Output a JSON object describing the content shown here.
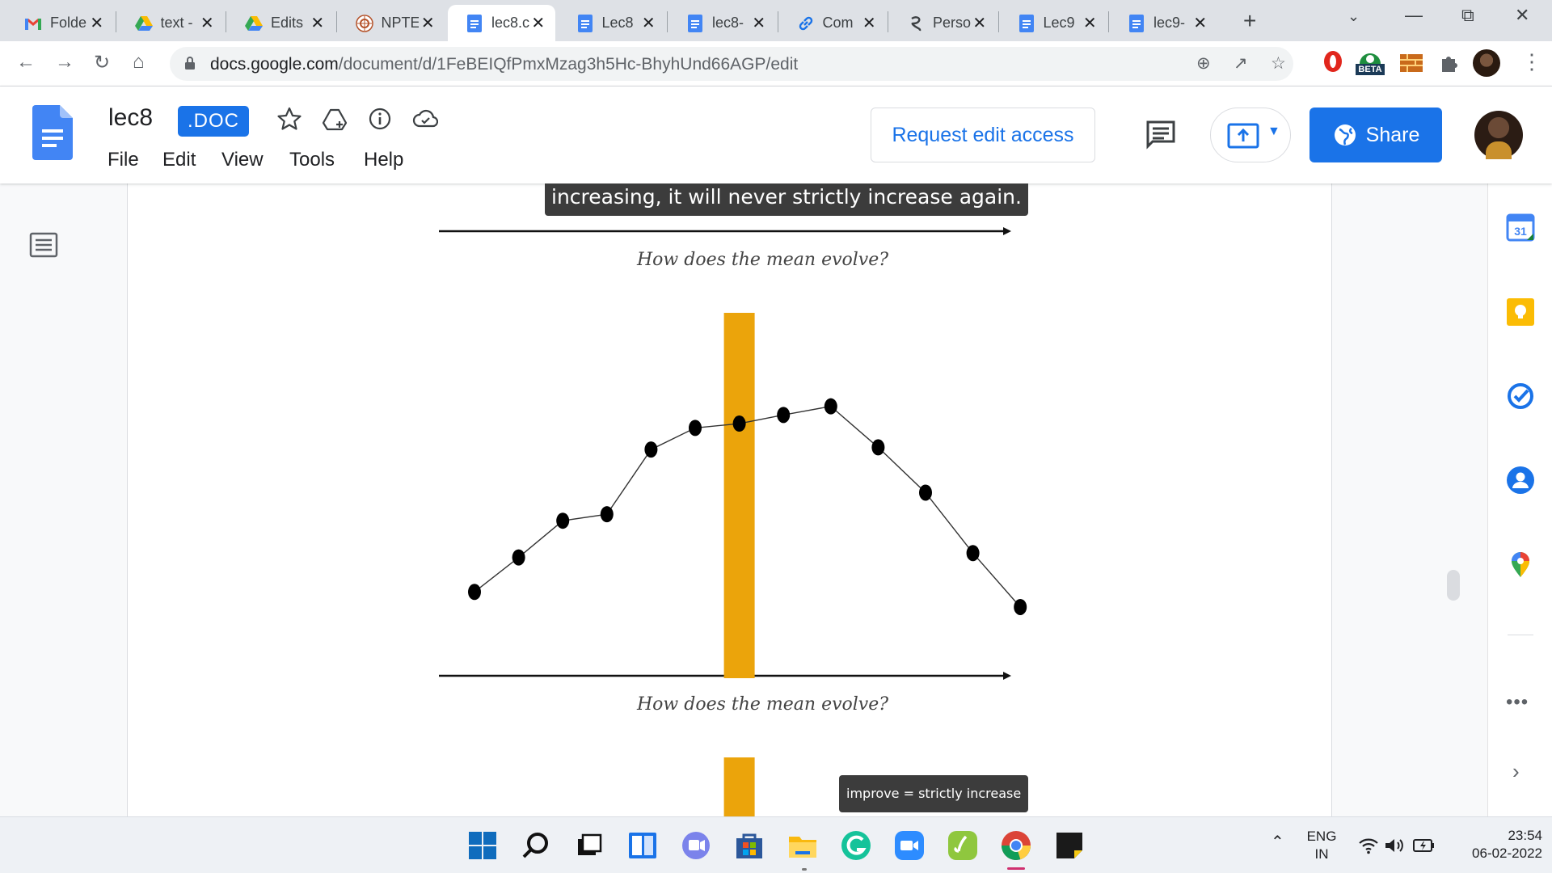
{
  "browser": {
    "tabs": [
      {
        "title": "Folde",
        "icon": "gmail-icon",
        "active": false
      },
      {
        "title": "text -",
        "icon": "drive-icon",
        "active": false
      },
      {
        "title": "Edits",
        "icon": "drive-icon",
        "active": false
      },
      {
        "title": "NPTE",
        "icon": "nptel-icon",
        "active": false
      },
      {
        "title": "lec8.c",
        "icon": "docs-icon",
        "active": true
      },
      {
        "title": "Lec8",
        "icon": "docs-icon",
        "active": false
      },
      {
        "title": "lec8-",
        "icon": "docs-icon",
        "active": false
      },
      {
        "title": "Com",
        "icon": "link-icon",
        "active": false
      },
      {
        "title": "Perso",
        "icon": "spiral-icon",
        "active": false
      },
      {
        "title": "Lec9",
        "icon": "docs-icon",
        "active": false
      },
      {
        "title": "lec9-",
        "icon": "docs-icon",
        "active": false
      }
    ],
    "url_host": "docs.google.com",
    "url_path": "/document/d/1FeBEIQfPmxMzag3h5Hc-BhyhUnd66AGP/edit",
    "extension_badge": "BETA"
  },
  "docs": {
    "title": "lec8",
    "badge": ".DOC",
    "menu": [
      "File",
      "Edit",
      "View",
      "Tools",
      "Help"
    ],
    "request_edit_label": "Request edit access",
    "share_label": "Share"
  },
  "document": {
    "top_caption": "increasing, it will never strictly increase again.",
    "handnote_1": "How does the mean evolve?",
    "handnote_2": "How does the mean evolve?",
    "bottom_caption": "improve = strictly increase",
    "plot_points": [
      [
        1,
        1.0
      ],
      [
        2,
        2.6
      ],
      [
        3,
        4.3
      ],
      [
        4,
        4.6
      ],
      [
        5,
        7.6
      ],
      [
        6,
        8.6
      ],
      [
        7,
        8.8
      ],
      [
        8,
        9.2
      ],
      [
        9,
        9.6
      ],
      [
        10,
        7.7
      ],
      [
        11,
        5.6
      ],
      [
        12,
        2.8
      ],
      [
        13,
        0.3
      ]
    ],
    "highlight_x": 7,
    "highlight_color": "#eba40b"
  },
  "taskbar": {
    "lang_1": "ENG",
    "lang_2": "IN",
    "time": "23:54",
    "date": "06-02-2022"
  }
}
